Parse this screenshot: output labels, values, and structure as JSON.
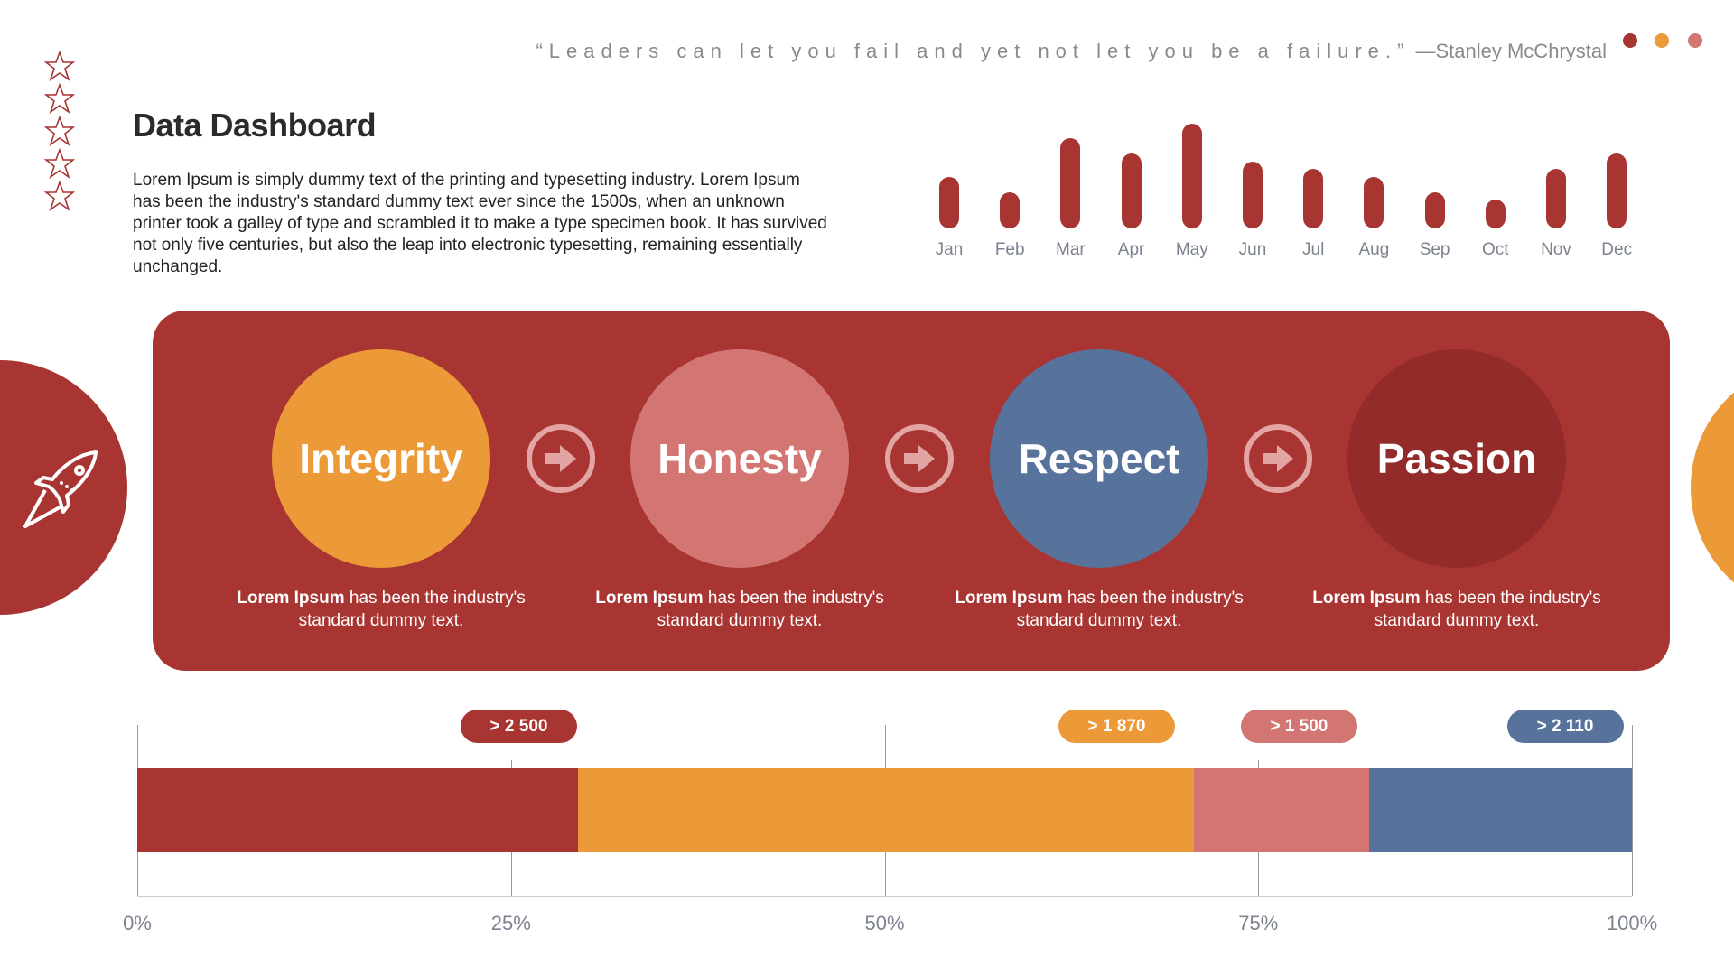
{
  "quote": {
    "text": "“Leaders can let you fail and yet not let you be a failure.”",
    "author": "—Stanley McChrystal"
  },
  "decor_dots": [
    "#a83532",
    "#ec9a37",
    "#d37673"
  ],
  "stars_icon": "star-outline-icon",
  "title": "Data Dashboard",
  "paragraph": "Lorem Ipsum is simply dummy text of the printing and typesetting industry. Lorem Ipsum has been the industry's standard dummy text ever since the 1500s, when an unknown printer took a galley of type and scrambled it to make a type specimen book. It has survived not only five centuries, but also the leap into electronic typesetting, remaining essentially unchanged.",
  "values": [
    {
      "label": "Integrity",
      "color": "#ec9a37",
      "bold": "Lorem Ipsum",
      "desc1": " has been the industry's",
      "desc2": "standard dummy text."
    },
    {
      "label": "Honesty",
      "color": "#d37673",
      "bold": "Lorem Ipsum",
      "desc1": " has been the industry's",
      "desc2": "standard dummy text."
    },
    {
      "label": "Respect",
      "color": "#57729b",
      "bold": "Lorem Ipsum",
      "desc1": " has been the industry's",
      "desc2": "standard dummy text."
    },
    {
      "label": "Passion",
      "color": "#922b29",
      "bold": "Lorem Ipsum",
      "desc1": " has been the industry's",
      "desc2": "standard dummy text."
    }
  ],
  "colors": {
    "primary": "#a83532",
    "orange": "#ec9a37",
    "pink": "#d37673",
    "blue": "#57729b",
    "dark": "#922b29"
  },
  "chart_data": [
    {
      "type": "bar",
      "categories": [
        "Jan",
        "Feb",
        "Mar",
        "Apr",
        "May",
        "Jun",
        "Jul",
        "Aug",
        "Sep",
        "Oct",
        "Nov",
        "Dec"
      ],
      "values": [
        47,
        33,
        82,
        68,
        95,
        61,
        54,
        47,
        33,
        26,
        54,
        68
      ],
      "grid": false,
      "color": "#a83532"
    },
    {
      "type": "bar",
      "orientation": "horizontal-stacked",
      "xlim": [
        0,
        100
      ],
      "ticks": [
        "0%",
        "25%",
        "50%",
        "75%",
        "100%"
      ],
      "segments": [
        {
          "start": 0,
          "end": 29.5,
          "color": "#a83532",
          "badge": "> 2 500",
          "badge_at": 25.5
        },
        {
          "start": 29.5,
          "end": 70.7,
          "color": "#ec9a37",
          "badge": "> 1 870",
          "badge_at": 65.5
        },
        {
          "start": 70.7,
          "end": 82.4,
          "color": "#d37673",
          "badge": "> 1 500",
          "badge_at": 77.7
        },
        {
          "start": 82.4,
          "end": 100,
          "color": "#57729b",
          "badge": "> 2 110",
          "badge_at": 95.5
        }
      ]
    }
  ]
}
